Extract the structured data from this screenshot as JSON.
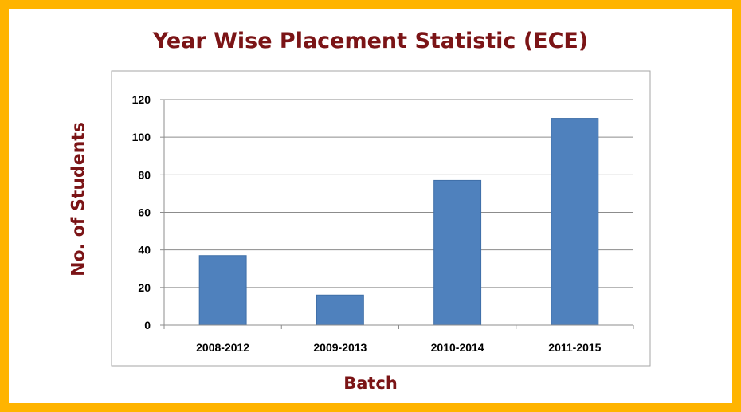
{
  "chart_data": {
    "type": "bar",
    "title": "Year Wise Placement Statistic (ECE)",
    "xlabel": "Batch",
    "ylabel": "No. of Students",
    "categories": [
      "2008-2012",
      "2009-2013",
      "2010-2014",
      "2011-2015"
    ],
    "values": [
      37,
      16,
      77,
      110
    ],
    "ylim": [
      0,
      120
    ],
    "yticks": [
      "0",
      "20",
      "40",
      "60",
      "80",
      "100",
      "120"
    ],
    "grid": true,
    "legend": "none"
  },
  "colors": {
    "frame": "#ffb400",
    "title": "#7b1416",
    "bar": "#4f81bd",
    "bar_edge": "#3f6fa8",
    "gridline": "#8c8c8c",
    "plot_border": "#a6a6a6"
  }
}
